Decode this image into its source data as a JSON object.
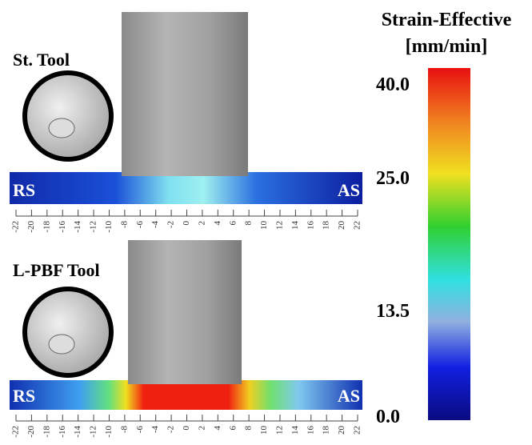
{
  "colorbar": {
    "title": "Strain-Effective",
    "unit": "[mm/min]",
    "ticks": [
      "40.0",
      "25.0",
      "13.5",
      "0.0"
    ]
  },
  "panels": [
    {
      "label": "St. Tool",
      "left": "RS",
      "right": "AS",
      "scale": [
        -22,
        -20,
        -18,
        -16,
        -14,
        -12,
        -10,
        -8,
        -6,
        -4,
        -2,
        0,
        2,
        4,
        6,
        8,
        10,
        12,
        14,
        16,
        18,
        20,
        22
      ]
    },
    {
      "label": "L-PBF Tool",
      "left": "RS",
      "right": "AS",
      "scale": [
        -22,
        -20,
        -18,
        -16,
        -14,
        -12,
        -10,
        -8,
        -6,
        -4,
        -2,
        0,
        2,
        4,
        6,
        8,
        10,
        12,
        14,
        16,
        18,
        20,
        22
      ]
    }
  ]
}
